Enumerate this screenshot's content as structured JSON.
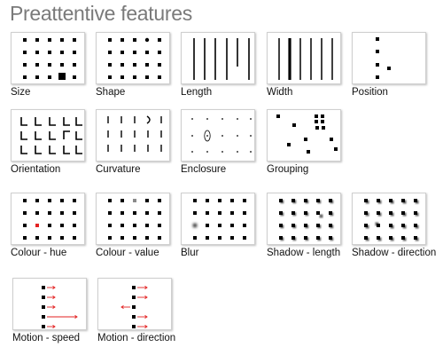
{
  "title": "Preattentive features",
  "colors": {
    "accent_red": "#e32222",
    "value_gray": "#8a8a8a",
    "mark": "#000000",
    "panel_border": "#cfcfcf"
  },
  "features": [
    {
      "id": "size",
      "label": "Size"
    },
    {
      "id": "shape",
      "label": "Shape"
    },
    {
      "id": "length",
      "label": "Length"
    },
    {
      "id": "width",
      "label": "Width"
    },
    {
      "id": "position",
      "label": "Position"
    },
    {
      "id": "orientation",
      "label": "Orientation"
    },
    {
      "id": "curvature",
      "label": "Curvature"
    },
    {
      "id": "enclosure",
      "label": "Enclosure"
    },
    {
      "id": "grouping",
      "label": "Grouping"
    },
    {
      "id": "colour-hue",
      "label": "Colour - hue"
    },
    {
      "id": "colour-value",
      "label": "Colour - value"
    },
    {
      "id": "blur",
      "label": "Blur"
    },
    {
      "id": "shadow-length",
      "label": "Shadow - length"
    },
    {
      "id": "shadow-direction",
      "label": "Shadow - direction"
    },
    {
      "id": "motion-speed",
      "label": "Motion - speed"
    },
    {
      "id": "motion-direction",
      "label": "Motion - direction"
    }
  ]
}
